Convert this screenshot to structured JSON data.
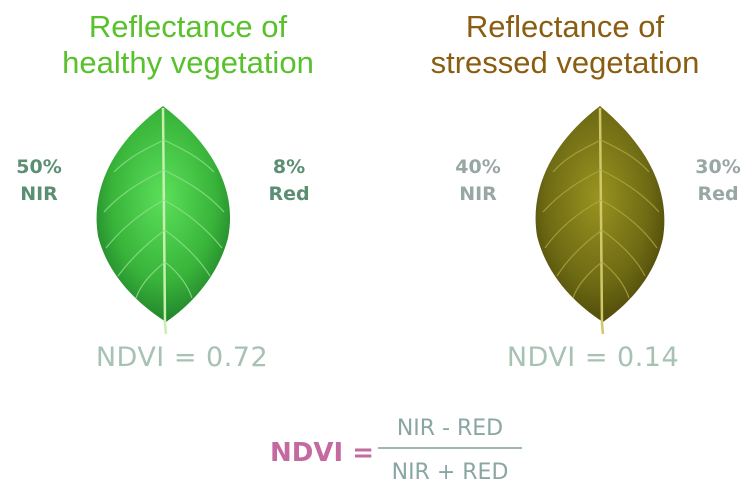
{
  "healthy": {
    "title_line1": "Reflectance of",
    "title_line2": "healthy vegetation",
    "nir_value": "50%",
    "nir_label": "NIR",
    "red_value": "8%",
    "red_label": "Red",
    "ndvi": "NDVI = 0.72"
  },
  "stressed": {
    "title_line1": "Reflectance of",
    "title_line2": "stressed vegetation",
    "nir_value": "40%",
    "nir_label": "NIR",
    "red_value": "30%",
    "red_label": "Red",
    "ndvi": "NDVI = 0.14"
  },
  "formula": {
    "label": "NDVI =",
    "numerator": "NIR - RED",
    "denominator": "NIR + RED"
  },
  "colors": {
    "healthy_title": "#58c12c",
    "stressed_title": "#8a5d10",
    "healthy_stat": "#5a8f73",
    "stressed_stat": "#98a7a5",
    "ndvi_value": "#a7c1b3",
    "formula_label": "#c36aa0",
    "fraction_text": "#8aa6a3"
  },
  "icons": {
    "healthy_leaf": "green-leaf-icon",
    "stressed_leaf": "olive-leaf-icon"
  }
}
